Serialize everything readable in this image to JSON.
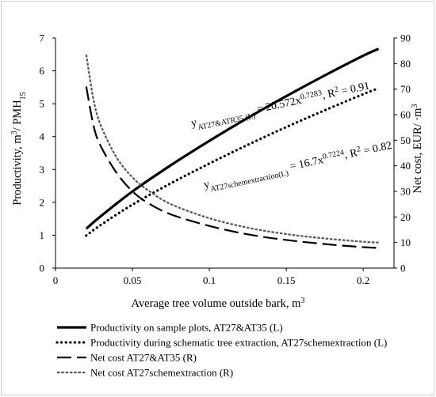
{
  "chart_data": {
    "type": "line",
    "xlabel": "Average tree volume outside bark, m",
    "xlabel_sup": "3",
    "ylabel_left": "Productivity, m",
    "ylabel_left_parts": [
      "Productivity, m",
      "3",
      "/ PMH",
      "15"
    ],
    "ylabel_right": "Net cost, EUR/ ·m",
    "ylabel_right_parts": [
      "Net cost, EUR/ ·m",
      "3"
    ],
    "x_ticks": [
      "0",
      "0.05",
      "0.1",
      "0.15",
      "0.2"
    ],
    "y_left_ticks": [
      "0",
      "1",
      "2",
      "3",
      "4",
      "5",
      "6",
      "7"
    ],
    "y_right_ticks": [
      "0",
      "10",
      "20",
      "30",
      "40",
      "50",
      "60",
      "70",
      "80",
      "90"
    ],
    "xlim": [
      0,
      0.22
    ],
    "ylim_left": [
      0,
      7
    ],
    "ylim_right": [
      0,
      90
    ],
    "grid": false,
    "legend_position": "bottom",
    "series": [
      {
        "name": "Productivity on sample plots, AT27&AT35 (L)",
        "axis": "left",
        "style": "solid",
        "x": [
          0.02,
          0.03,
          0.05,
          0.075,
          0.1,
          0.125,
          0.15,
          0.175,
          0.2,
          0.21
        ],
        "y": [
          1.2,
          1.6,
          2.33,
          3.13,
          3.87,
          4.57,
          5.23,
          5.86,
          6.46,
          6.67
        ]
      },
      {
        "name": "Productivity during schematic tree extraction, AT27schemextraction (L)",
        "axis": "left",
        "style": "dotted",
        "x": [
          0.02,
          0.03,
          0.05,
          0.075,
          0.1,
          0.125,
          0.15,
          0.175,
          0.2,
          0.21
        ],
        "y": [
          0.99,
          1.33,
          1.93,
          2.58,
          3.18,
          3.75,
          4.29,
          4.8,
          5.29,
          5.47
        ]
      },
      {
        "name": "Net cost AT27&AT35 (R)",
        "axis": "right",
        "style": "dashed",
        "x": [
          0.02,
          0.025,
          0.03,
          0.04,
          0.05,
          0.06,
          0.075,
          0.1,
          0.125,
          0.15,
          0.175,
          0.2,
          0.21
        ],
        "y": [
          71,
          55,
          47,
          37,
          30,
          25.5,
          21,
          16.5,
          13.2,
          11,
          9.4,
          8.2,
          7.9
        ]
      },
      {
        "name": "Net cost AT27schemextraction (R)",
        "axis": "right",
        "style": "short-dash",
        "x": [
          0.02,
          0.025,
          0.03,
          0.04,
          0.05,
          0.06,
          0.075,
          0.1,
          0.125,
          0.15,
          0.175,
          0.2,
          0.21
        ],
        "y": [
          83.5,
          65,
          55,
          43,
          35.5,
          30.5,
          25,
          19.5,
          15.8,
          13.3,
          11.6,
          10.3,
          10
        ]
      }
    ],
    "annotations": [
      {
        "parts": [
          "y",
          "AT27&ATR35 (L)",
          " = 20.572x",
          "0.7283",
          ", R",
          "2",
          " = 0.91"
        ]
      },
      {
        "parts": [
          "y",
          "AT27schemextraction(L)",
          " = 16.7x",
          "0.7224",
          ", R",
          "2",
          " = 0.82"
        ]
      }
    ]
  }
}
